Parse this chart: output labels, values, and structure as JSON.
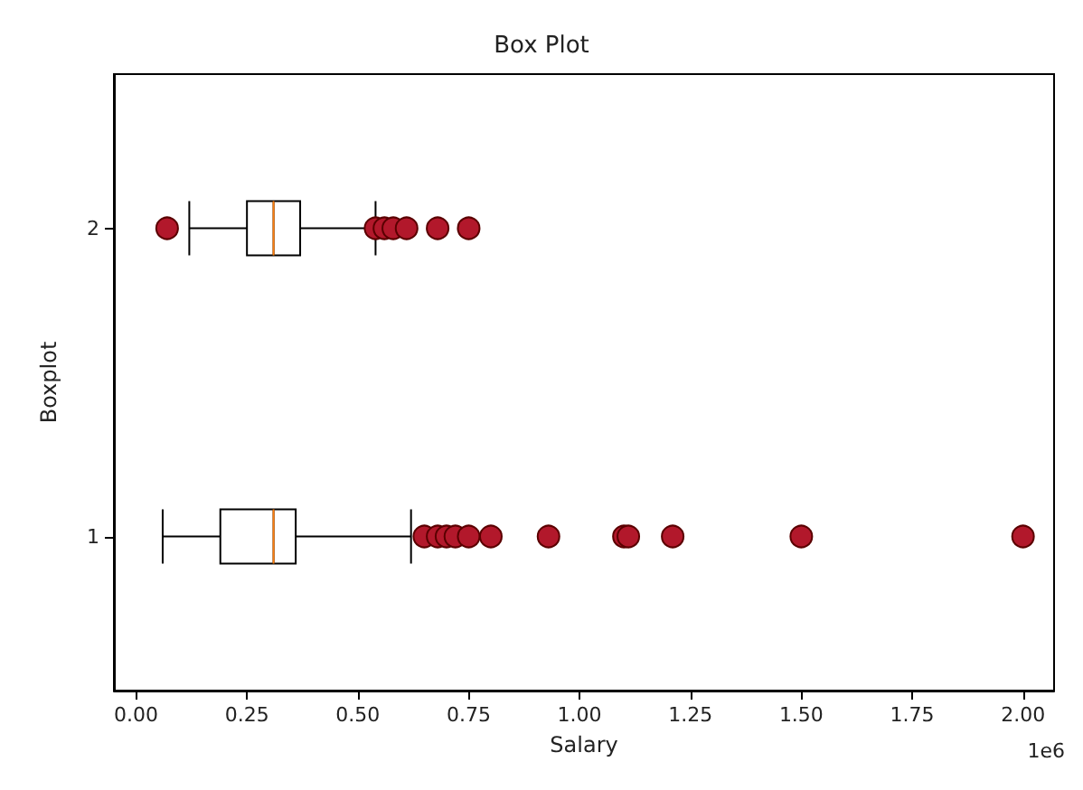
{
  "chart_data": {
    "type": "box",
    "title": "Box Plot",
    "xlabel": "Salary",
    "ylabel": "Boxplot",
    "orientation": "horizontal",
    "categories": [
      "2",
      "1"
    ],
    "boxes": [
      {
        "low": 0.12,
        "q1": 0.25,
        "median": 0.31,
        "q3": 0.37,
        "high": 0.54,
        "outliers": [
          0.07,
          0.54,
          0.56,
          0.58,
          0.61,
          0.68,
          0.75
        ]
      },
      {
        "low": 0.06,
        "q1": 0.19,
        "median": 0.31,
        "q3": 0.36,
        "high": 0.62,
        "outliers": [
          0.65,
          0.68,
          0.7,
          0.72,
          0.75,
          0.8,
          0.93,
          1.1,
          1.11,
          1.21,
          1.5,
          2.0
        ]
      }
    ],
    "color": "#000000",
    "marker": "circle",
    "xlim": [
      -0.05,
      2.07
    ],
    "xticks": [
      {
        "value": 0,
        "label": "0.00"
      },
      {
        "value": 0.25,
        "label": "0.25"
      },
      {
        "value": 0.5,
        "label": "0.50"
      },
      {
        "value": 0.75,
        "label": "0.75"
      },
      {
        "value": 1,
        "label": "1.00"
      },
      {
        "value": 1.25,
        "label": "1.25"
      },
      {
        "value": 1.5,
        "label": "1.50"
      },
      {
        "value": 1.75,
        "label": "1.75"
      },
      {
        "value": 2,
        "label": "2.00"
      }
    ],
    "grid": false,
    "annotations": [
      "1e6"
    ]
  }
}
